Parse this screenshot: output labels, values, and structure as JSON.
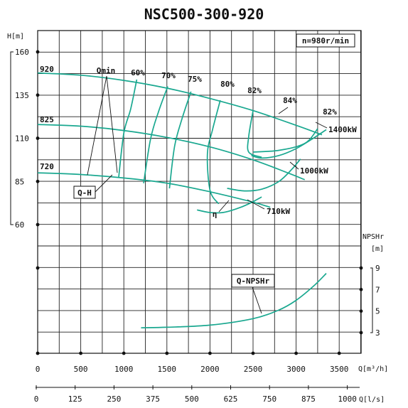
{
  "chart_data": {
    "type": "line",
    "title": "NSC500-300-920",
    "speed_label": "n=980r/min",
    "x_flow_m3h": {
      "label": "Q[m³/h]",
      "ticks": [
        0,
        500,
        1000,
        1500,
        2000,
        2500,
        3000,
        3500
      ],
      "range": [
        0,
        3500
      ]
    },
    "x_flow_ls": {
      "label": "Q[l/s]",
      "ticks": [
        0,
        125,
        250,
        375,
        500,
        625,
        750,
        875,
        1000
      ]
    },
    "y_head": {
      "label": "H[m]",
      "ticks": [
        160,
        135,
        110,
        85,
        60
      ],
      "range": [
        60,
        160
      ]
    },
    "y_npshr": {
      "label": "NPSHr\n[m]",
      "ticks": [
        9,
        7,
        5,
        3
      ],
      "range": [
        3,
        9
      ]
    },
    "impeller_diameters": [
      "920",
      "825",
      "720"
    ],
    "series": [
      {
        "name": "920",
        "x": [
          0,
          500,
          1000,
          1500,
          2000,
          2500,
          3000,
          3300
        ],
        "y": [
          147.8,
          146.5,
          143.5,
          139.0,
          133.0,
          126.0,
          117.5,
          112.0
        ]
      },
      {
        "name": "825",
        "x": [
          0,
          500,
          1000,
          1500,
          2000,
          2500,
          2900,
          3100
        ],
        "y": [
          118.0,
          117.0,
          114.5,
          110.5,
          105.0,
          97.5,
          90.0,
          86.0
        ]
      },
      {
        "name": "720",
        "x": [
          0,
          500,
          1000,
          1500,
          2000,
          2500,
          2700
        ],
        "y": [
          90.0,
          89.0,
          87.0,
          84.0,
          79.0,
          73.0,
          70.0
        ]
      },
      {
        "name": "1400kW",
        "x": [
          2480,
          2600,
          2800,
          3000,
          3200,
          3350
        ],
        "y": [
          100.0,
          98.5,
          100.0,
          104.0,
          110.0,
          115.0
        ]
      },
      {
        "name": "1000kW",
        "x": [
          2200,
          2400,
          2600,
          2800,
          2950,
          3050
        ],
        "y": [
          81.0,
          79.5,
          80.5,
          85.0,
          92.0,
          98.0
        ]
      },
      {
        "name": "710kW",
        "x": [
          1850,
          2000,
          2150,
          2300,
          2450,
          2600
        ],
        "y": [
          68.5,
          67.0,
          67.0,
          69.0,
          72.0,
          76.0
        ]
      },
      {
        "name": "Q-NPSHr",
        "x": [
          1200,
          1500,
          2000,
          2500,
          2800,
          3000,
          3200,
          3350
        ],
        "y": [
          3.45,
          3.5,
          3.7,
          4.3,
          5.1,
          6.0,
          7.3,
          8.5
        ]
      }
    ],
    "efficiency_labels": [
      "60%",
      "70%",
      "75%",
      "80%",
      "82%",
      "84%",
      "82%"
    ],
    "efficiency_lines": [
      {
        "name": "60%",
        "x": [
          1150,
          1080,
          1000,
          940
        ],
        "y": [
          144.0,
          127.0,
          113.0,
          87.0
        ]
      },
      {
        "name": "70%",
        "x": [
          1510,
          1400,
          1310,
          1230
        ],
        "y": [
          140.0,
          125.0,
          109.5,
          84.0
        ]
      },
      {
        "name": "75%",
        "x": [
          1780,
          1680,
          1590,
          1530
        ],
        "y": [
          137.0,
          122.0,
          105.5,
          81.0
        ]
      },
      {
        "name": "80%",
        "x": [
          2120,
          2030,
          1970,
          2000,
          2100
        ],
        "y": [
          132.0,
          115.0,
          101.0,
          80.0,
          72.0
        ]
      },
      {
        "name": "82%",
        "x": [
          2500,
          2450,
          2450,
          2600
        ],
        "y": [
          126.0,
          111.0,
          102.0,
          99.0
        ]
      },
      {
        "name": "84%",
        "x": [
          2500,
          2800,
          3100,
          3250
        ],
        "y": [
          102.0,
          103.0,
          107.0,
          115.5
        ]
      }
    ],
    "annotations": [
      "Qmin",
      "Q-H",
      "η",
      "Q-NPSHr",
      "1400kW",
      "1000kW",
      "710kW"
    ],
    "grid": true,
    "colors": {
      "curve": "#1aa890",
      "grid": "#222222"
    }
  }
}
